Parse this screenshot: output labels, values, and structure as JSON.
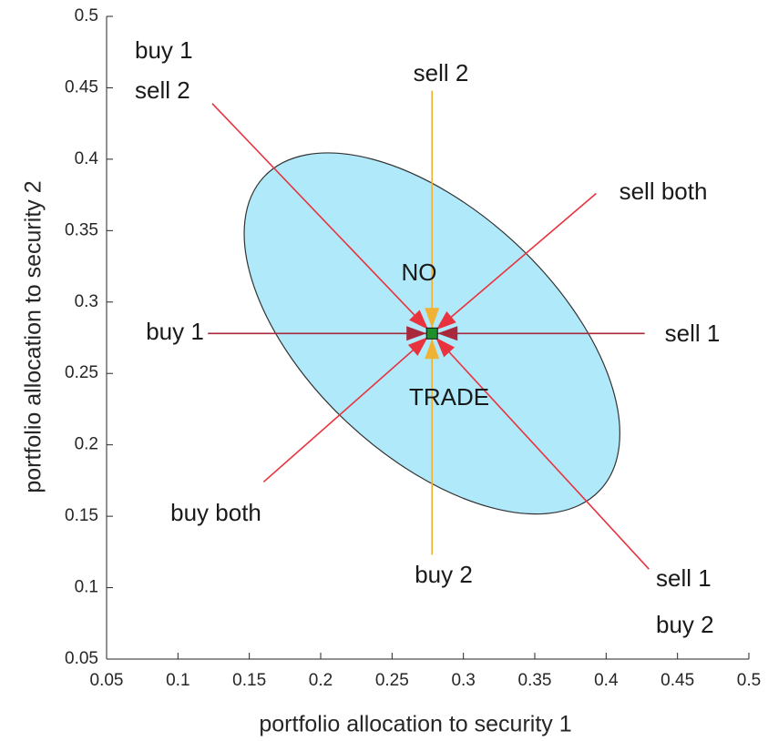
{
  "chart_data": {
    "type": "tradezone",
    "xlabel": "portfolio allocation to security 1",
    "ylabel": "portfolio allocation to security 2",
    "xlim": [
      0.05,
      0.5
    ],
    "ylim": [
      0.05,
      0.5
    ],
    "xticks": [
      0.05,
      0.1,
      0.15,
      0.2,
      0.25,
      0.3,
      0.35,
      0.4,
      0.45,
      0.5
    ],
    "yticks": [
      0.05,
      0.1,
      0.15,
      0.2,
      0.25,
      0.3,
      0.35,
      0.4,
      0.45,
      0.5
    ],
    "ellipse": {
      "x": 0.278,
      "y": 0.278,
      "a": 0.161,
      "b": 0.086,
      "angle_deg": -43,
      "color": "#b0e9fa"
    },
    "point": {
      "x": 0.278,
      "y": 0.278,
      "color": "#1f8f2a"
    },
    "zone_label": [
      "NO",
      "TRADE"
    ],
    "arrows": [
      {
        "label": [
          "buy 1",
          "sell 2"
        ],
        "x": 0.124,
        "y": 0.439,
        "color": "#e8333f"
      },
      {
        "label": [
          "sell 2"
        ],
        "x": 0.278,
        "y": 0.448,
        "color": "#f0b234"
      },
      {
        "label": [
          "sell both"
        ],
        "x": 0.393,
        "y": 0.376,
        "color": "#e8333f"
      },
      {
        "label": [
          "buy 1"
        ],
        "x": 0.121,
        "y": 0.278,
        "color": "#a8283c"
      },
      {
        "label": [
          "sell 1"
        ],
        "x": 0.427,
        "y": 0.278,
        "color": "#a8283c"
      },
      {
        "label": [
          "buy both"
        ],
        "x": 0.16,
        "y": 0.174,
        "color": "#e8333f"
      },
      {
        "label": [
          "buy 2"
        ],
        "x": 0.278,
        "y": 0.123,
        "color": "#f0b234"
      },
      {
        "label": [
          "sell 1",
          "buy 2"
        ],
        "x": 0.43,
        "y": 0.113,
        "color": "#e8333f"
      }
    ]
  }
}
